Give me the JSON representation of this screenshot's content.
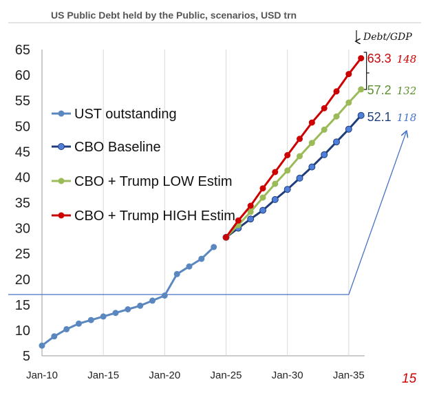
{
  "chart_data": {
    "type": "line",
    "title": "US Public Debt held by the Public, scenarios, USD trn",
    "xlabel": "",
    "ylabel": "",
    "ylim": [
      5,
      65
    ],
    "yticks": [
      5,
      10,
      15,
      20,
      25,
      30,
      35,
      40,
      45,
      50,
      55,
      60,
      65
    ],
    "xlim": [
      2010,
      2036.3
    ],
    "xticks": [
      {
        "label": "Jan-10",
        "value": 2010
      },
      {
        "label": "Jan-15",
        "value": 2015
      },
      {
        "label": "Jan-20",
        "value": 2020
      },
      {
        "label": "Jan-25",
        "value": 2025
      },
      {
        "label": "Jan-30",
        "value": 2030
      },
      {
        "label": "Jan-35",
        "value": 2035
      }
    ],
    "grid": "vertical",
    "legend_position": "left",
    "series": [
      {
        "name": "UST outstanding",
        "color": "#5b87c0",
        "x": [
          2010,
          2011,
          2012,
          2013,
          2014,
          2015,
          2016,
          2017,
          2018,
          2019,
          2020,
          2021,
          2022,
          2023,
          2024
        ],
        "values": [
          7.0,
          8.8,
          10.2,
          11.3,
          12.0,
          12.7,
          13.4,
          14.1,
          14.8,
          15.8,
          16.8,
          21.0,
          22.5,
          24.0,
          26.3
        ]
      },
      {
        "name": "CBO Baseline",
        "color": "#1f3d7a",
        "x": [
          2025,
          2026,
          2027,
          2028,
          2029,
          2030,
          2031,
          2032,
          2033,
          2034,
          2035,
          2036
        ],
        "values": [
          28.2,
          30.0,
          31.8,
          33.5,
          35.6,
          37.6,
          39.8,
          42.0,
          44.4,
          46.9,
          49.4,
          52.1
        ]
      },
      {
        "name": "CBO + Trump LOW Estim",
        "color": "#9bbb59",
        "x": [
          2025,
          2026,
          2027,
          2028,
          2029,
          2030,
          2031,
          2032,
          2033,
          2034,
          2035,
          2036
        ],
        "values": [
          28.2,
          30.6,
          33.2,
          36.0,
          38.7,
          41.3,
          44.1,
          46.7,
          49.3,
          51.9,
          54.6,
          57.2
        ]
      },
      {
        "name": "CBO + Trump HIGH Estim",
        "color": "#cc0000",
        "x": [
          2025,
          2026,
          2027,
          2028,
          2029,
          2030,
          2031,
          2032,
          2033,
          2034,
          2035,
          2036
        ],
        "values": [
          28.2,
          31.5,
          34.4,
          37.8,
          41.0,
          44.3,
          47.5,
          50.7,
          53.5,
          56.8,
          60.2,
          63.3
        ]
      }
    ],
    "end_labels": [
      {
        "series": "CBO + Trump HIGH Estim",
        "value": "63.3",
        "debt_gdp": "148",
        "color": "#cc0000"
      },
      {
        "series": "CBO + Trump LOW Estim",
        "value": "57.2",
        "debt_gdp": "132",
        "color": "#5a8f2e"
      },
      {
        "series": "CBO Baseline",
        "value": "52.1",
        "debt_gdp": "118",
        "color": "#1f3d7a"
      }
    ],
    "annotations": {
      "debt_gdp_header": "Debt/GDP",
      "reference_line_value": 17,
      "arrow_color": "#4472c4",
      "ratio_colors": [
        "#cc0000",
        "#5a8f2e",
        "#4472c4"
      ]
    }
  },
  "page": {
    "number": "15"
  }
}
